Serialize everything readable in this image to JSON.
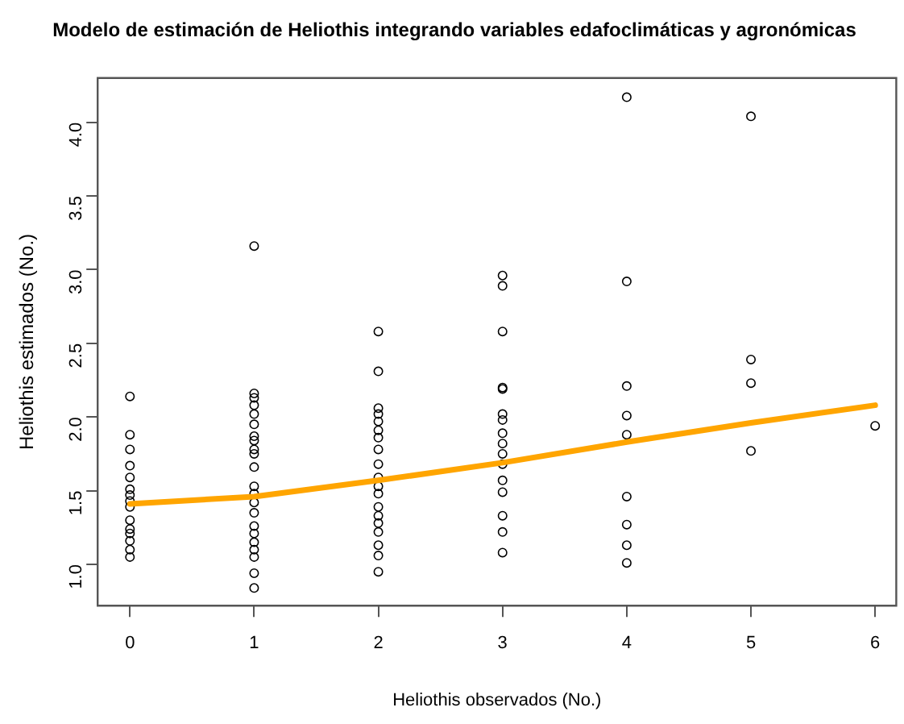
{
  "chart_data": {
    "type": "scatter",
    "title": "Modelo de estimación de Heliothis integrando variables edafoclimáticas y agronómicas",
    "xlabel": "Heliothis observados (No.)",
    "ylabel": "Heliothis estimados (No.)",
    "xlim": [
      -0.26,
      6.17
    ],
    "ylim": [
      0.72,
      4.3
    ],
    "xticks": [
      0,
      1,
      2,
      3,
      4,
      5,
      6
    ],
    "yticks": [
      {
        "value": 1,
        "label": "1.0"
      },
      {
        "value": 1.5,
        "label": "1.5"
      },
      {
        "value": 2,
        "label": "2.0"
      },
      {
        "value": 2.5,
        "label": "2.5"
      },
      {
        "value": 3,
        "label": "3.0"
      },
      {
        "value": 3.5,
        "label": "3.5"
      },
      {
        "value": 4,
        "label": "4.0"
      }
    ],
    "grid": false,
    "legend": false,
    "marker": "circle",
    "series": [
      {
        "color": "#000000",
        "x": [
          0,
          0,
          0,
          0,
          0,
          0,
          0,
          0,
          0,
          0,
          0,
          0,
          0,
          0,
          0,
          1,
          1,
          1,
          1,
          1,
          1,
          1,
          1,
          1,
          1,
          1,
          1,
          1,
          1,
          1,
          1,
          1,
          1,
          1,
          1,
          1,
          1,
          2,
          2,
          2,
          2,
          2,
          2,
          2,
          2,
          2,
          2,
          2,
          2,
          2,
          2,
          2,
          2,
          2,
          2,
          2,
          3,
          3,
          3,
          3,
          3,
          3,
          3,
          3,
          3,
          3,
          3,
          3,
          3,
          3,
          3,
          3,
          4,
          4,
          4,
          4,
          4,
          4,
          4,
          4,
          4,
          5,
          5,
          5,
          5,
          6
        ],
        "values": [
          2.14,
          1.88,
          1.78,
          1.67,
          1.59,
          1.51,
          1.47,
          1.43,
          1.39,
          1.3,
          1.24,
          1.21,
          1.16,
          1.1,
          1.05,
          3.16,
          2.16,
          2.13,
          2.08,
          2.02,
          1.95,
          1.87,
          1.84,
          1.78,
          1.75,
          1.66,
          1.53,
          1.48,
          1.42,
          1.35,
          1.26,
          1.21,
          1.15,
          1.1,
          1.05,
          0.94,
          0.84,
          2.58,
          2.31,
          2.06,
          2.02,
          1.97,
          1.91,
          1.86,
          1.78,
          1.68,
          1.59,
          1.53,
          1.48,
          1.39,
          1.33,
          1.28,
          1.22,
          1.13,
          1.06,
          0.95,
          2.96,
          2.89,
          2.58,
          2.19,
          2.2,
          2.02,
          1.98,
          1.89,
          1.82,
          1.75,
          1.68,
          1.57,
          1.49,
          1.33,
          1.22,
          1.08,
          4.17,
          2.92,
          2.21,
          2.01,
          1.88,
          1.46,
          1.27,
          1.13,
          1.01,
          4.04,
          2.39,
          2.23,
          1.77,
          1.94
        ]
      },
      {
        "type": "line",
        "color": "#ffa500",
        "marker": "none",
        "line_style": "solid",
        "x": [
          0,
          1,
          2,
          3,
          4,
          5,
          6
        ],
        "values": [
          1.41,
          1.46,
          1.57,
          1.69,
          1.83,
          1.96,
          2.08
        ]
      }
    ]
  }
}
